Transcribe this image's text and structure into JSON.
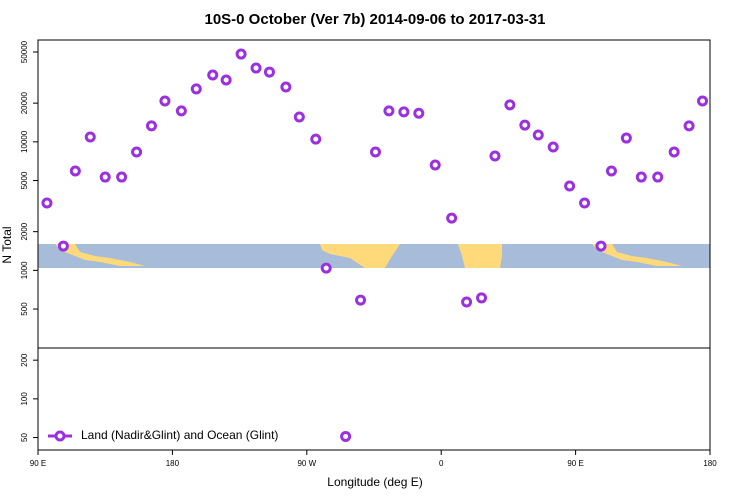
{
  "chart_data": {
    "type": "scatter",
    "title": "10S-0 October (Ver 7b)   2014-09-06 to 2017-03-31",
    "x_label": "Longitude (deg E)",
    "y_label": "N Total",
    "y_scale": "log",
    "legend": "bottom-left",
    "series": [
      {
        "name": "Land (Nadir&Glint) and Ocean (Glint)",
        "color": "#9b30e0",
        "x": [
          96,
          107,
          115,
          125,
          135,
          146,
          156,
          166,
          175,
          186,
          196,
          207,
          216,
          226,
          236,
          245,
          256,
          265,
          276,
          283,
          296,
          306,
          316,
          325,
          335,
          345,
          356,
          367,
          377,
          387,
          396,
          406,
          416,
          425,
          435,
          446,
          456,
          467,
          474,
          484,
          494,
          505,
          516,
          526,
          535
        ],
        "values": [
          3340,
          1545,
          5930,
          10900,
          5320,
          5320,
          8340,
          13300,
          20800,
          17400,
          25800,
          33100,
          30300,
          48200,
          37500,
          34900,
          26700,
          15600,
          10500,
          1040,
          51,
          587,
          8340,
          17400,
          17100,
          16700,
          6600,
          2550,
          567,
          610,
          7760,
          19400,
          13500,
          11300,
          9120,
          4530,
          3340,
          1545,
          5930,
          10700,
          5320,
          5320,
          8340,
          13300,
          20800
        ]
      }
    ],
    "xlim": [
      90,
      540
    ],
    "xticks": [
      {
        "value": 90,
        "label": "90 E"
      },
      180,
      {
        "value": 270,
        "label": "90 W"
      },
      {
        "value": 360,
        "label": "0"
      },
      {
        "value": 450,
        "label": "90 E"
      },
      {
        "value": 540,
        "label": "180"
      }
    ],
    "ylim": [
      40,
      62000
    ],
    "yticks": [
      50,
      100,
      200,
      500,
      1000,
      2000,
      5000,
      10000,
      20000,
      50000
    ]
  }
}
